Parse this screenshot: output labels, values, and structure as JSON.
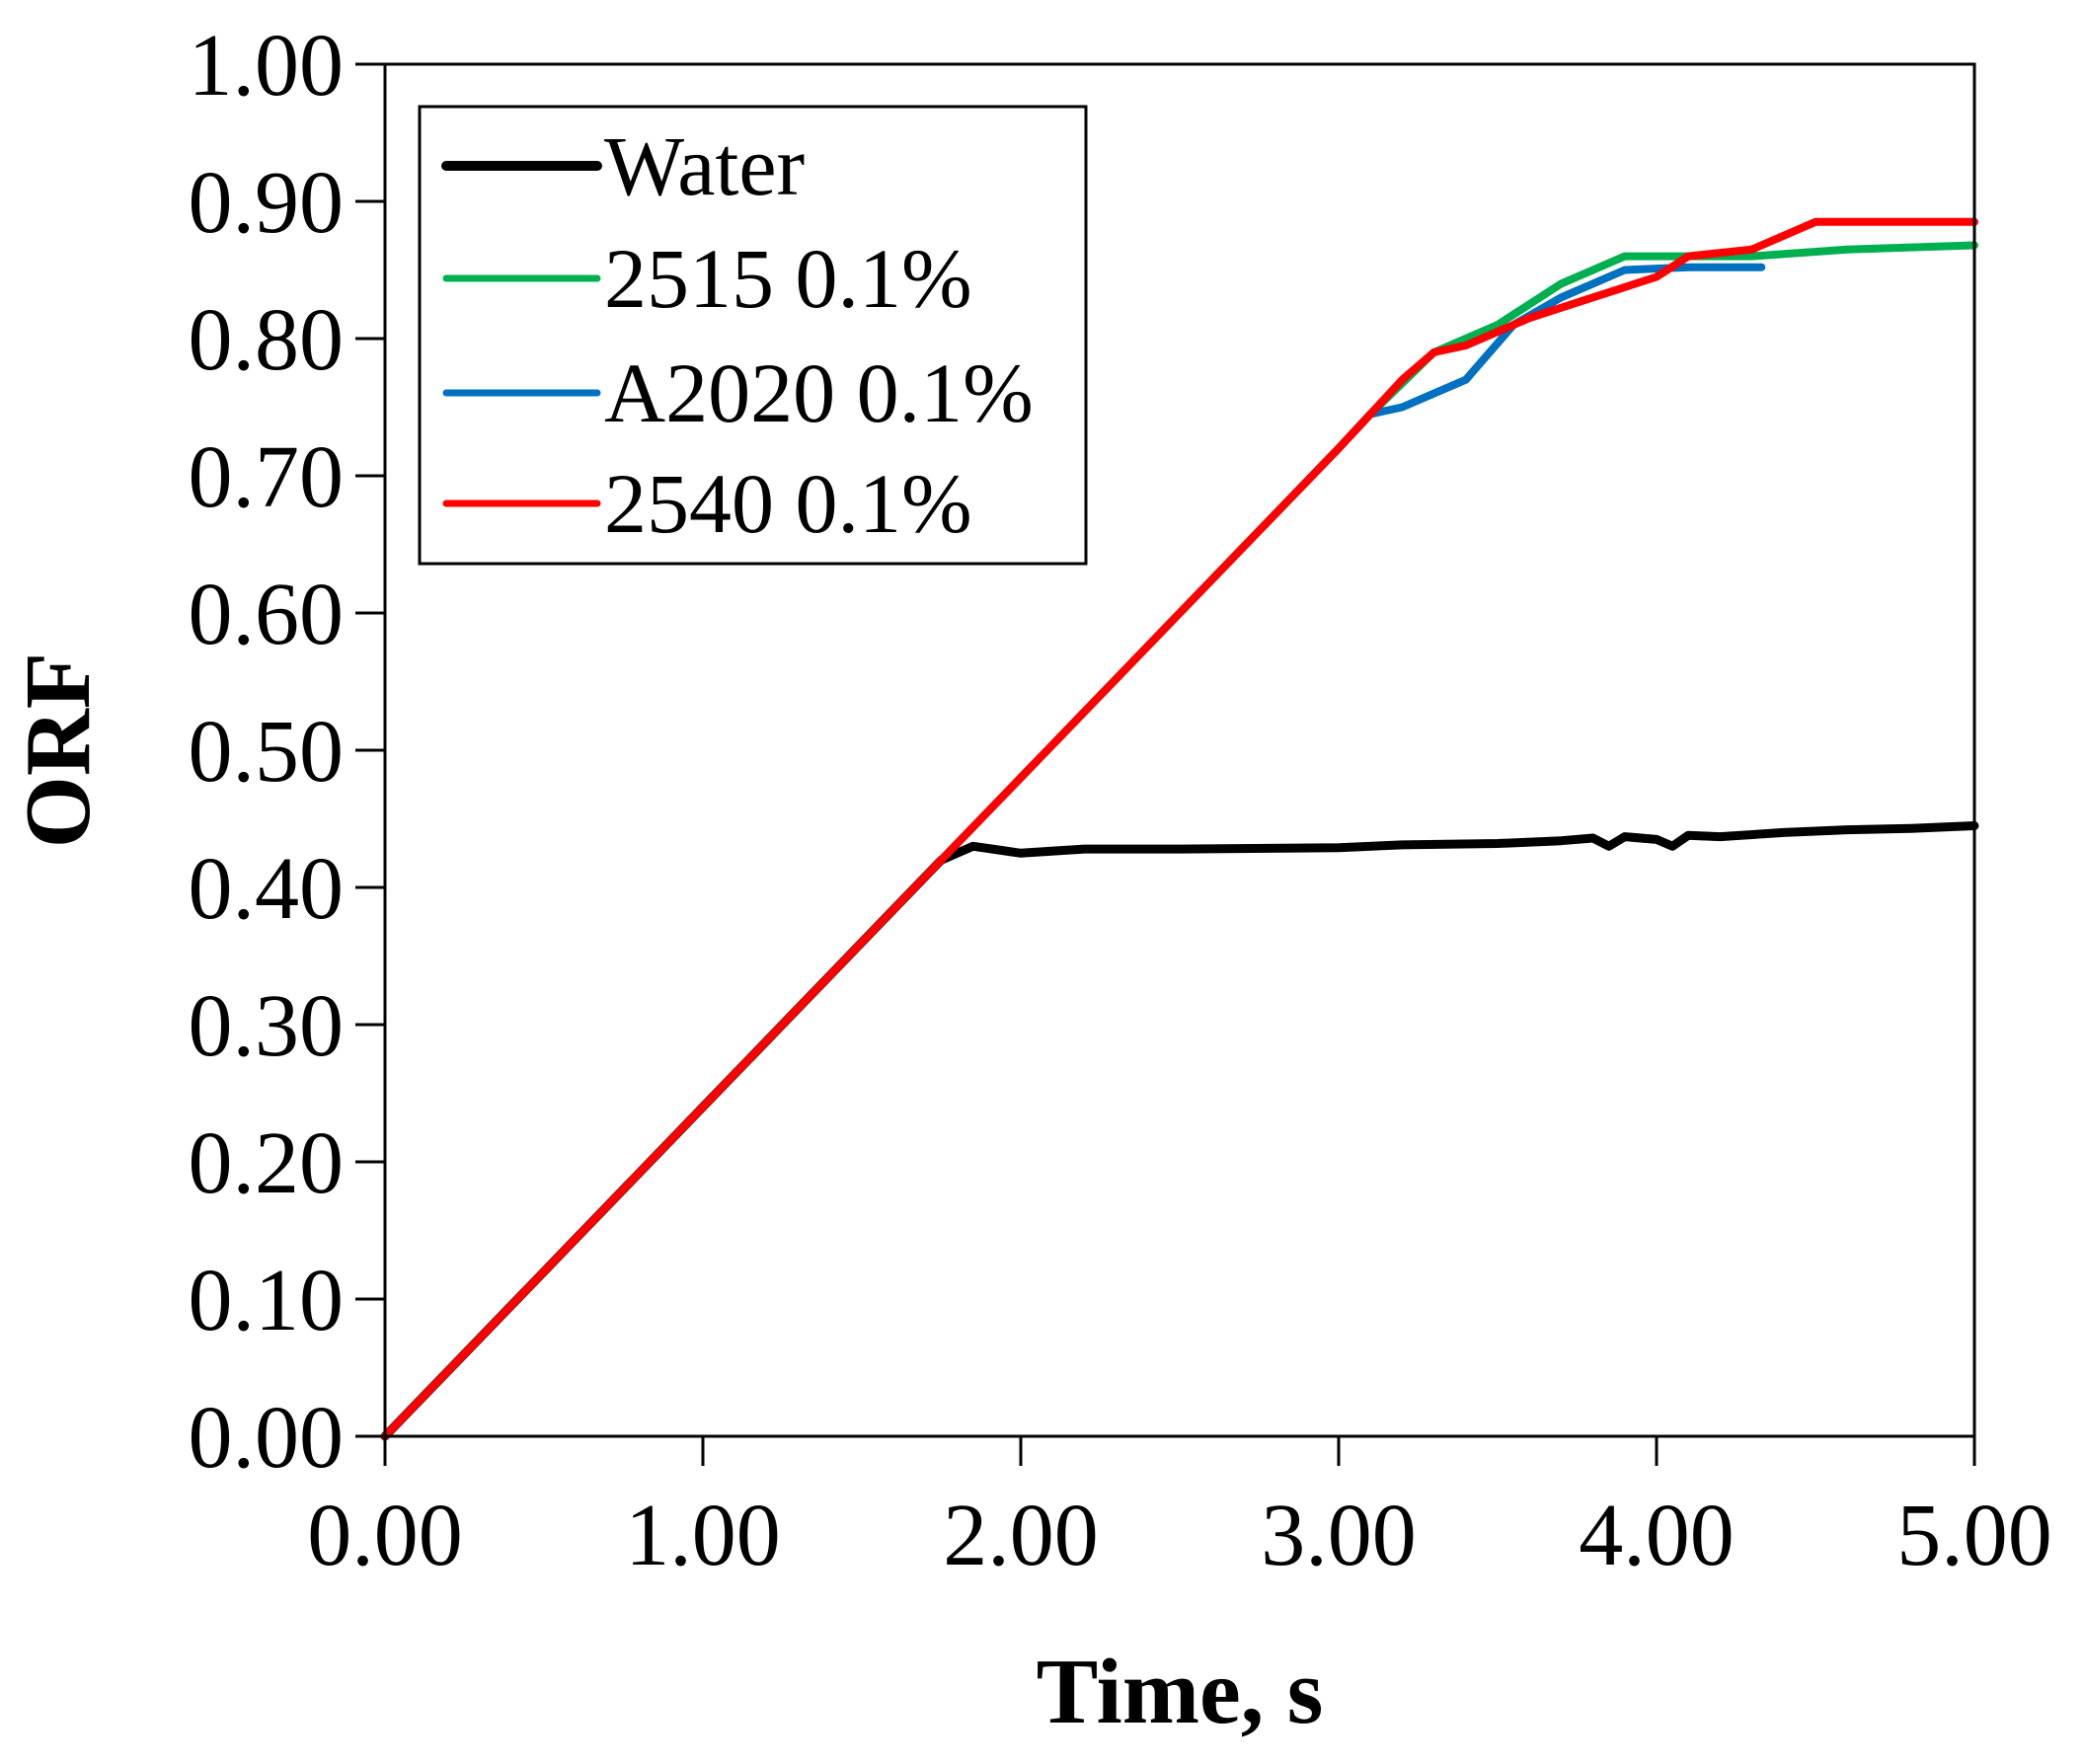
{
  "chart_data": {
    "type": "line",
    "title": "",
    "xlabel": "Time, s",
    "ylabel": "ORF",
    "xlim": [
      0,
      5
    ],
    "ylim": [
      0,
      1
    ],
    "x_ticks": [
      "0.00",
      "1.00",
      "2.00",
      "3.00",
      "4.00",
      "5.00"
    ],
    "y_ticks": [
      "0.00",
      "0.10",
      "0.20",
      "0.30",
      "0.40",
      "0.50",
      "0.60",
      "0.70",
      "0.80",
      "0.90",
      "1.00"
    ],
    "legend_position": "top-left",
    "series": [
      {
        "name": "Water",
        "color": "#000000",
        "x": [
          0,
          0.5,
          1.0,
          1.5,
          1.75,
          1.85,
          2.0,
          2.2,
          2.5,
          3.0,
          3.2,
          3.5,
          3.7,
          3.8,
          3.85,
          3.9,
          4.0,
          4.05,
          4.1,
          4.2,
          4.4,
          4.6,
          4.8,
          5.0
        ],
        "y": [
          0,
          0.12,
          0.24,
          0.36,
          0.42,
          0.43,
          0.425,
          0.428,
          0.428,
          0.429,
          0.431,
          0.432,
          0.434,
          0.436,
          0.43,
          0.437,
          0.435,
          0.43,
          0.438,
          0.437,
          0.44,
          0.442,
          0.443,
          0.445
        ]
      },
      {
        "name": "2515 0.1%",
        "color": "#00b050",
        "x": [
          0,
          0.5,
          1.0,
          1.5,
          2.0,
          2.5,
          3.0,
          3.1,
          3.3,
          3.5,
          3.7,
          3.9,
          4.1,
          4.3,
          4.6,
          5.0
        ],
        "y": [
          0,
          0.12,
          0.24,
          0.36,
          0.48,
          0.6,
          0.72,
          0.745,
          0.79,
          0.81,
          0.84,
          0.86,
          0.86,
          0.86,
          0.865,
          0.868
        ]
      },
      {
        "name": "A2020 0.1%",
        "color": "#0070c0",
        "x": [
          0,
          0.5,
          1.0,
          1.5,
          2.0,
          2.5,
          3.0,
          3.1,
          3.2,
          3.3,
          3.4,
          3.55,
          3.7,
          3.9,
          4.1,
          4.33
        ],
        "y": [
          0,
          0.12,
          0.24,
          0.36,
          0.48,
          0.6,
          0.72,
          0.745,
          0.75,
          0.76,
          0.77,
          0.81,
          0.83,
          0.85,
          0.852,
          0.852
        ]
      },
      {
        "name": "2540 0.1%",
        "color": "#ff0000",
        "x": [
          0,
          0.5,
          1.0,
          1.5,
          2.0,
          2.5,
          3.0,
          3.1,
          3.2,
          3.3,
          3.4,
          3.6,
          3.8,
          4.0,
          4.1,
          4.3,
          4.4,
          4.5,
          5.0
        ],
        "y": [
          0,
          0.12,
          0.24,
          0.36,
          0.48,
          0.6,
          0.72,
          0.745,
          0.77,
          0.79,
          0.795,
          0.815,
          0.83,
          0.845,
          0.86,
          0.865,
          0.875,
          0.885,
          0.885
        ]
      }
    ]
  }
}
